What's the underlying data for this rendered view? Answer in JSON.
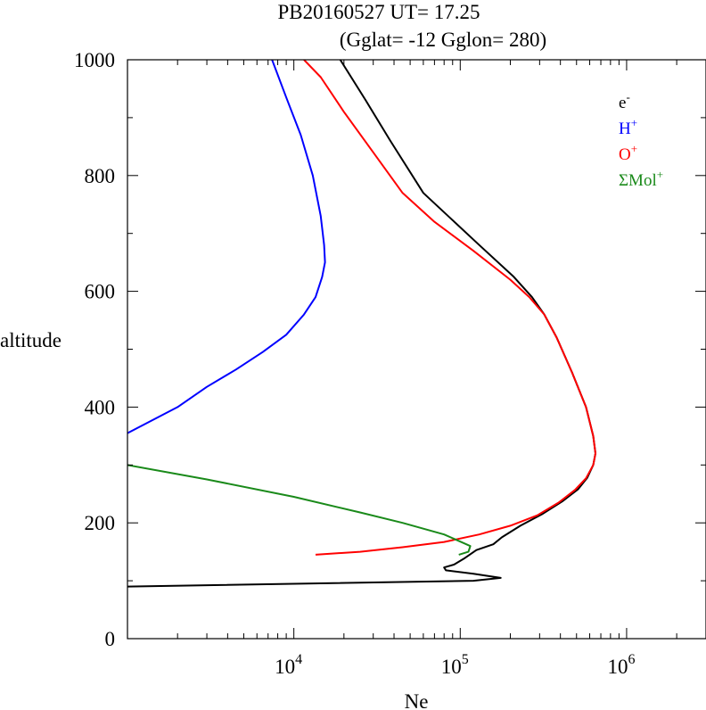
{
  "chart_data": {
    "type": "line",
    "title": "PB20160527   UT=  17.25",
    "subtitle": "(Gglat= -12   Gglon=  280)",
    "xlabel": "Ne",
    "ylabel": "altitude",
    "x_scale": "log",
    "xlim": [
      1000,
      3000000
    ],
    "ylim": [
      0,
      1000
    ],
    "x_ticks": [
      {
        "value": 10000,
        "base": "10",
        "exp": "4"
      },
      {
        "value": 100000,
        "base": "10",
        "exp": "5"
      },
      {
        "value": 1000000,
        "base": "10",
        "exp": "6"
      }
    ],
    "y_ticks": [
      0,
      200,
      400,
      600,
      800,
      1000
    ],
    "grid": false,
    "legend_position": "top-right",
    "series": [
      {
        "name": "e",
        "sup": "-",
        "color": "#000000",
        "points": [
          [
            1000,
            90
          ],
          [
            120000,
            100
          ],
          [
            175000,
            105
          ],
          [
            120000,
            112
          ],
          [
            82000,
            118
          ],
          [
            80000,
            123
          ],
          [
            92000,
            128
          ],
          [
            105000,
            138
          ],
          [
            125000,
            153
          ],
          [
            158000,
            163
          ],
          [
            178000,
            175
          ],
          [
            230000,
            195
          ],
          [
            310000,
            215
          ],
          [
            410000,
            237
          ],
          [
            510000,
            258
          ],
          [
            580000,
            278
          ],
          [
            630000,
            300
          ],
          [
            650000,
            320
          ],
          [
            630000,
            350
          ],
          [
            570000,
            400
          ],
          [
            470000,
            460
          ],
          [
            380000,
            520
          ],
          [
            320000,
            560
          ],
          [
            270000,
            590
          ],
          [
            210000,
            625
          ],
          [
            130000,
            680
          ],
          [
            60000,
            770
          ],
          [
            38000,
            860
          ],
          [
            27000,
            930
          ],
          [
            19000,
            1000
          ]
        ]
      },
      {
        "name": "H",
        "sup": "+",
        "color": "#0000ff",
        "points": [
          [
            1000,
            355
          ],
          [
            2000,
            400
          ],
          [
            3000,
            435
          ],
          [
            4500,
            465
          ],
          [
            6500,
            495
          ],
          [
            9000,
            525
          ],
          [
            11500,
            560
          ],
          [
            13500,
            590
          ],
          [
            14800,
            625
          ],
          [
            15400,
            650
          ],
          [
            15200,
            680
          ],
          [
            14500,
            730
          ],
          [
            13000,
            800
          ],
          [
            11000,
            870
          ],
          [
            9000,
            935
          ],
          [
            7400,
            1000
          ]
        ]
      },
      {
        "name": "O",
        "sup": "+",
        "color": "#ff0000",
        "points": [
          [
            13500,
            145
          ],
          [
            25000,
            150
          ],
          [
            45000,
            158
          ],
          [
            80000,
            167
          ],
          [
            130000,
            180
          ],
          [
            200000,
            195
          ],
          [
            290000,
            213
          ],
          [
            390000,
            235
          ],
          [
            490000,
            257
          ],
          [
            570000,
            277
          ],
          [
            630000,
            300
          ],
          [
            650000,
            320
          ],
          [
            630000,
            350
          ],
          [
            570000,
            400
          ],
          [
            470000,
            460
          ],
          [
            380000,
            520
          ],
          [
            320000,
            560
          ],
          [
            260000,
            590
          ],
          [
            200000,
            620
          ],
          [
            120000,
            670
          ],
          [
            70000,
            720
          ],
          [
            45000,
            770
          ],
          [
            30000,
            840
          ],
          [
            20000,
            910
          ],
          [
            14500,
            970
          ],
          [
            11500,
            1000
          ]
        ]
      },
      {
        "name": "ΣMol",
        "sup": "+",
        "color": "#1a8a1a",
        "points": [
          [
            1000,
            300
          ],
          [
            3000,
            275
          ],
          [
            10000,
            245
          ],
          [
            25000,
            218
          ],
          [
            45000,
            200
          ],
          [
            80000,
            180
          ],
          [
            105000,
            165
          ],
          [
            115000,
            160
          ],
          [
            112000,
            150
          ],
          [
            98000,
            145
          ]
        ]
      }
    ]
  }
}
